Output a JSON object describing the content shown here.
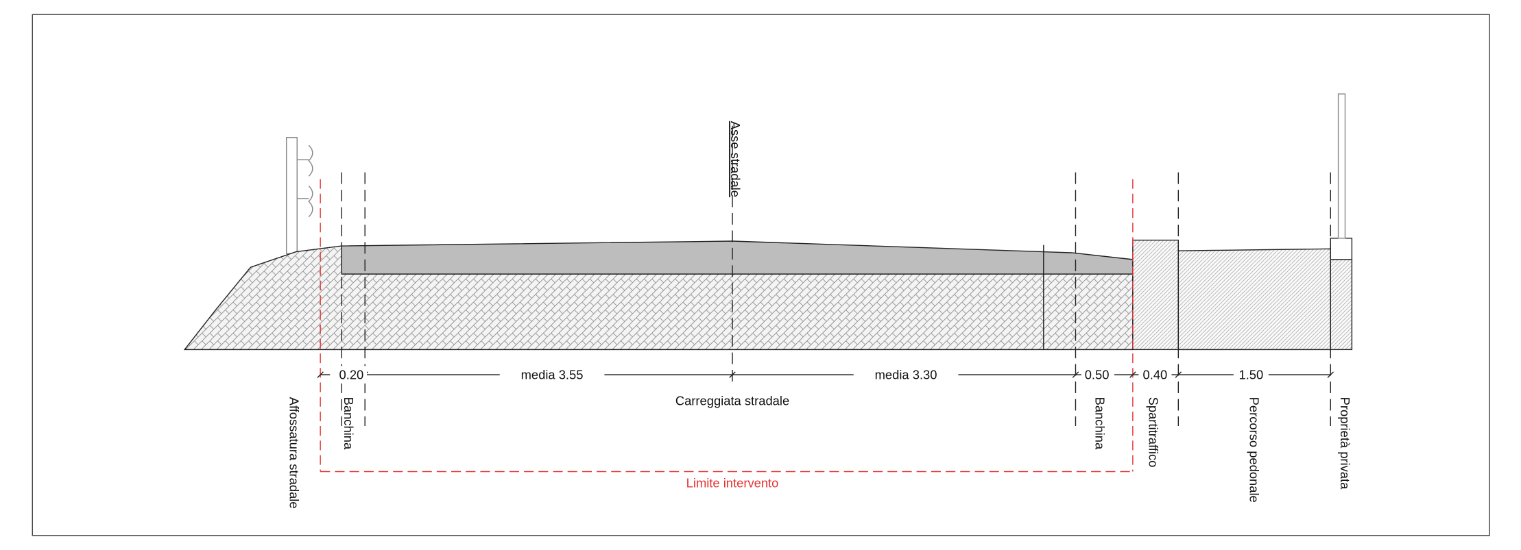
{
  "axis_label": "Asse stradale",
  "dimensions": [
    "0.20",
    "media 3.55",
    "media 3.30",
    "0.50",
    "0.40",
    "1.50"
  ],
  "section_label": "Carreggiata stradale",
  "zones": [
    "Affossatura stradale",
    "Banchina",
    "Banchina",
    "Spartitraffico",
    "Percorso pedonale",
    "Proprietà privata"
  ],
  "limit_label": "Limite intervento"
}
